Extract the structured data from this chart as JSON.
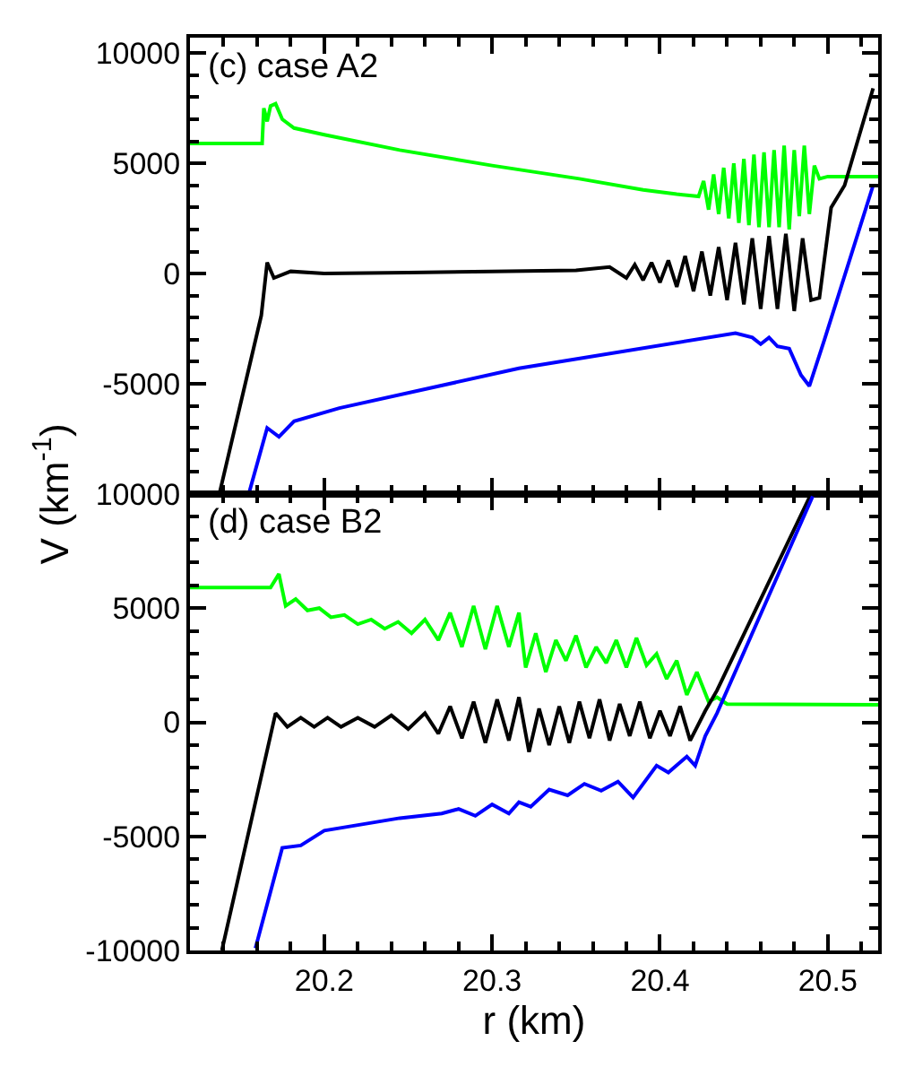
{
  "chart_data": [
    {
      "type": "line",
      "annotations": [
        "(c) case A2"
      ],
      "ylabel": "V (km$^{-1}$)",
      "xlim": [
        20.12,
        20.53
      ],
      "ylim": [
        -10000,
        10700
      ],
      "tick_labels": "y",
      "line_style": "solid",
      "marker": "none",
      "xticks": [
        {
          "value": 20.12,
          "label": null
        },
        {
          "value": 20.14,
          "label": null
        },
        {
          "value": 20.16,
          "label": null
        },
        {
          "value": 20.18,
          "label": null
        },
        20.2,
        {
          "value": 20.22,
          "label": null
        },
        {
          "value": 20.24,
          "label": null
        },
        {
          "value": 20.26,
          "label": null
        },
        {
          "value": 20.28,
          "label": null
        },
        20.3,
        {
          "value": 20.32,
          "label": null
        },
        {
          "value": 20.34,
          "label": null
        },
        {
          "value": 20.36,
          "label": null
        },
        {
          "value": 20.38,
          "label": null
        },
        20.4,
        {
          "value": 20.42,
          "label": null
        },
        {
          "value": 20.44,
          "label": null
        },
        {
          "value": 20.46,
          "label": null
        },
        {
          "value": 20.48,
          "label": null
        },
        20.5,
        {
          "value": 20.52,
          "label": null
        }
      ],
      "yticks": [
        {
          "value": -10000,
          "label": null
        },
        {
          "value": -9000,
          "label": null
        },
        {
          "value": -8000,
          "label": null
        },
        {
          "value": -7000,
          "label": null
        },
        {
          "value": -6000,
          "label": null
        },
        -5000,
        {
          "value": -4000,
          "label": null
        },
        {
          "value": -3000,
          "label": null
        },
        {
          "value": -2000,
          "label": null
        },
        {
          "value": -1000,
          "label": null
        },
        0,
        {
          "value": 1000,
          "label": null
        },
        {
          "value": 2000,
          "label": null
        },
        {
          "value": 3000,
          "label": null
        },
        {
          "value": 4000,
          "label": null
        },
        5000,
        {
          "value": 6000,
          "label": null
        },
        {
          "value": 7000,
          "label": null
        },
        {
          "value": 8000,
          "label": null
        },
        {
          "value": 9000,
          "label": null
        },
        10000
      ],
      "series": [
        {
          "color": "#00ff00",
          "x": [
            20.12,
            20.163,
            20.164,
            20.166,
            20.168,
            20.171,
            20.175,
            20.182,
            20.2,
            20.245,
            20.3,
            20.352,
            20.39,
            20.41,
            20.423,
            20.426,
            20.429,
            20.432,
            20.435,
            20.438,
            20.441,
            20.444,
            20.447,
            20.45,
            20.453,
            20.456,
            20.459,
            20.462,
            20.465,
            20.468,
            20.471,
            20.474,
            20.477,
            20.48,
            20.483,
            20.486,
            20.489,
            20.492,
            20.495,
            20.5,
            20.53
          ],
          "values": [
            5900,
            5900,
            7500,
            6900,
            7600,
            7700,
            7000,
            6600,
            6300,
            5600,
            4900,
            4300,
            3800,
            3600,
            3500,
            4200,
            2900,
            4500,
            2700,
            4800,
            2500,
            5000,
            2300,
            5200,
            2200,
            5400,
            2100,
            5500,
            2100,
            5600,
            2100,
            5800,
            2000,
            5600,
            2600,
            5800,
            2700,
            4900,
            4300,
            4400,
            4400
          ]
        },
        {
          "color": "#000000",
          "x": [
            20.1375,
            20.1625,
            20.166,
            20.17,
            20.18,
            20.2,
            20.25,
            20.3,
            20.35,
            20.37,
            20.38,
            20.385,
            20.39,
            20.395,
            20.4,
            20.405,
            20.41,
            20.415,
            20.42,
            20.425,
            20.43,
            20.435,
            20.44,
            20.445,
            20.45,
            20.455,
            20.46,
            20.465,
            20.47,
            20.475,
            20.48,
            20.485,
            20.49,
            20.495,
            20.502,
            20.51,
            20.527
          ],
          "values": [
            -10000,
            -1900,
            500,
            -200,
            100,
            0,
            50,
            100,
            150,
            300,
            -200,
            400,
            -300,
            500,
            -400,
            600,
            -600,
            800,
            -800,
            1000,
            -1000,
            1200,
            -1200,
            1400,
            -1400,
            1600,
            -1600,
            1700,
            -1600,
            1800,
            -1700,
            1600,
            -1200,
            -1100,
            3000,
            4000,
            8400
          ]
        },
        {
          "color": "#0000ff",
          "x": [
            20.155,
            20.166,
            20.173,
            20.182,
            20.209,
            20.316,
            20.445,
            20.455,
            20.46,
            20.465,
            20.47,
            20.477,
            20.484,
            20.489,
            20.498,
            20.527
          ],
          "values": [
            -10000,
            -7000,
            -7400,
            -6700,
            -6100,
            -4300,
            -2700,
            -2900,
            -3200,
            -2900,
            -3300,
            -3400,
            -4600,
            -5100,
            -3000,
            4000
          ]
        }
      ]
    },
    {
      "type": "line",
      "annotations": [
        "(d) case B2"
      ],
      "xlabel": "r (km)",
      "xlim": [
        20.12,
        20.53
      ],
      "ylim": [
        -10000,
        10000
      ],
      "line_style": "solid",
      "marker": "none",
      "xticks": [
        {
          "value": 20.12,
          "label": null
        },
        {
          "value": 20.14,
          "label": null
        },
        {
          "value": 20.16,
          "label": null
        },
        {
          "value": 20.18,
          "label": null
        },
        20.2,
        {
          "value": 20.22,
          "label": null
        },
        {
          "value": 20.24,
          "label": null
        },
        {
          "value": 20.26,
          "label": null
        },
        {
          "value": 20.28,
          "label": null
        },
        20.3,
        {
          "value": 20.32,
          "label": null
        },
        {
          "value": 20.34,
          "label": null
        },
        {
          "value": 20.36,
          "label": null
        },
        {
          "value": 20.38,
          "label": null
        },
        20.4,
        {
          "value": 20.42,
          "label": null
        },
        {
          "value": 20.44,
          "label": null
        },
        {
          "value": 20.46,
          "label": null
        },
        {
          "value": 20.48,
          "label": null
        },
        20.5,
        {
          "value": 20.52,
          "label": null
        }
      ],
      "yticks": [
        -10000,
        {
          "value": -9000,
          "label": null
        },
        {
          "value": -8000,
          "label": null
        },
        {
          "value": -7000,
          "label": null
        },
        {
          "value": -6000,
          "label": null
        },
        -5000,
        {
          "value": -4000,
          "label": null
        },
        {
          "value": -3000,
          "label": null
        },
        {
          "value": -2000,
          "label": null
        },
        {
          "value": -1000,
          "label": null
        },
        0,
        {
          "value": 1000,
          "label": null
        },
        {
          "value": 2000,
          "label": null
        },
        {
          "value": 3000,
          "label": null
        },
        {
          "value": 4000,
          "label": null
        },
        5000,
        {
          "value": 6000,
          "label": null
        },
        {
          "value": 7000,
          "label": null
        },
        {
          "value": 8000,
          "label": null
        },
        {
          "value": 9000,
          "label": null
        },
        10000
      ],
      "series": [
        {
          "color": "#00ff00",
          "x": [
            20.12,
            20.168,
            20.173,
            20.177,
            20.183,
            20.19,
            20.197,
            20.204,
            20.212,
            20.22,
            20.228,
            20.236,
            20.244,
            20.252,
            20.26,
            20.268,
            20.275,
            20.282,
            20.289,
            20.296,
            20.303,
            20.31,
            20.316,
            20.32,
            20.326,
            20.332,
            20.338,
            20.344,
            20.35,
            20.356,
            20.362,
            20.368,
            20.374,
            20.38,
            20.386,
            20.392,
            20.398,
            20.404,
            20.41,
            20.416,
            20.422,
            20.429,
            20.434,
            20.44,
            20.53
          ],
          "values": [
            5900,
            5900,
            6500,
            5100,
            5400,
            4900,
            5000,
            4600,
            4700,
            4300,
            4500,
            4100,
            4400,
            3900,
            4500,
            3600,
            4800,
            3300,
            5100,
            3200,
            5100,
            3300,
            4800,
            2400,
            3900,
            2200,
            3600,
            2700,
            3800,
            2400,
            3300,
            2600,
            3600,
            2400,
            3700,
            2500,
            3000,
            1900,
            2700,
            1200,
            2200,
            900,
            1100,
            800,
            770
          ]
        },
        {
          "color": "#000000",
          "x": [
            20.139,
            20.171,
            20.178,
            20.186,
            20.194,
            20.202,
            20.21,
            20.22,
            20.23,
            20.24,
            20.25,
            20.26,
            20.268,
            20.275,
            20.282,
            20.289,
            20.296,
            20.303,
            20.31,
            20.316,
            20.322,
            20.328,
            20.334,
            20.34,
            20.346,
            20.352,
            20.358,
            20.364,
            20.37,
            20.376,
            20.382,
            20.388,
            20.394,
            20.4,
            20.406,
            20.412,
            20.418,
            20.427,
            20.434,
            20.49
          ],
          "values": [
            -10000,
            400,
            -200,
            200,
            -200,
            200,
            -200,
            200,
            -200,
            300,
            -300,
            400,
            -500,
            700,
            -700,
            900,
            -900,
            1000,
            -800,
            1100,
            -1300,
            600,
            -1000,
            700,
            -900,
            900,
            -700,
            1000,
            -800,
            800,
            -600,
            900,
            -700,
            500,
            -600,
            700,
            -800,
            500,
            1400,
            10000
          ]
        },
        {
          "color": "#0000ff",
          "x": [
            20.159,
            20.175,
            20.186,
            20.2,
            20.245,
            20.27,
            20.28,
            20.29,
            20.3,
            20.31,
            20.316,
            20.323,
            20.334,
            20.345,
            20.355,
            20.365,
            20.375,
            20.384,
            20.398,
            20.405,
            20.416,
            20.421,
            20.427,
            20.434,
            20.491
          ],
          "values": [
            -9900,
            -5500,
            -5400,
            -4750,
            -4200,
            -4000,
            -3800,
            -4100,
            -3600,
            -4000,
            -3500,
            -3700,
            -2950,
            -3200,
            -2700,
            -3000,
            -2600,
            -3300,
            -1900,
            -2200,
            -1500,
            -1900,
            -600,
            400,
            9900
          ]
        }
      ]
    }
  ]
}
